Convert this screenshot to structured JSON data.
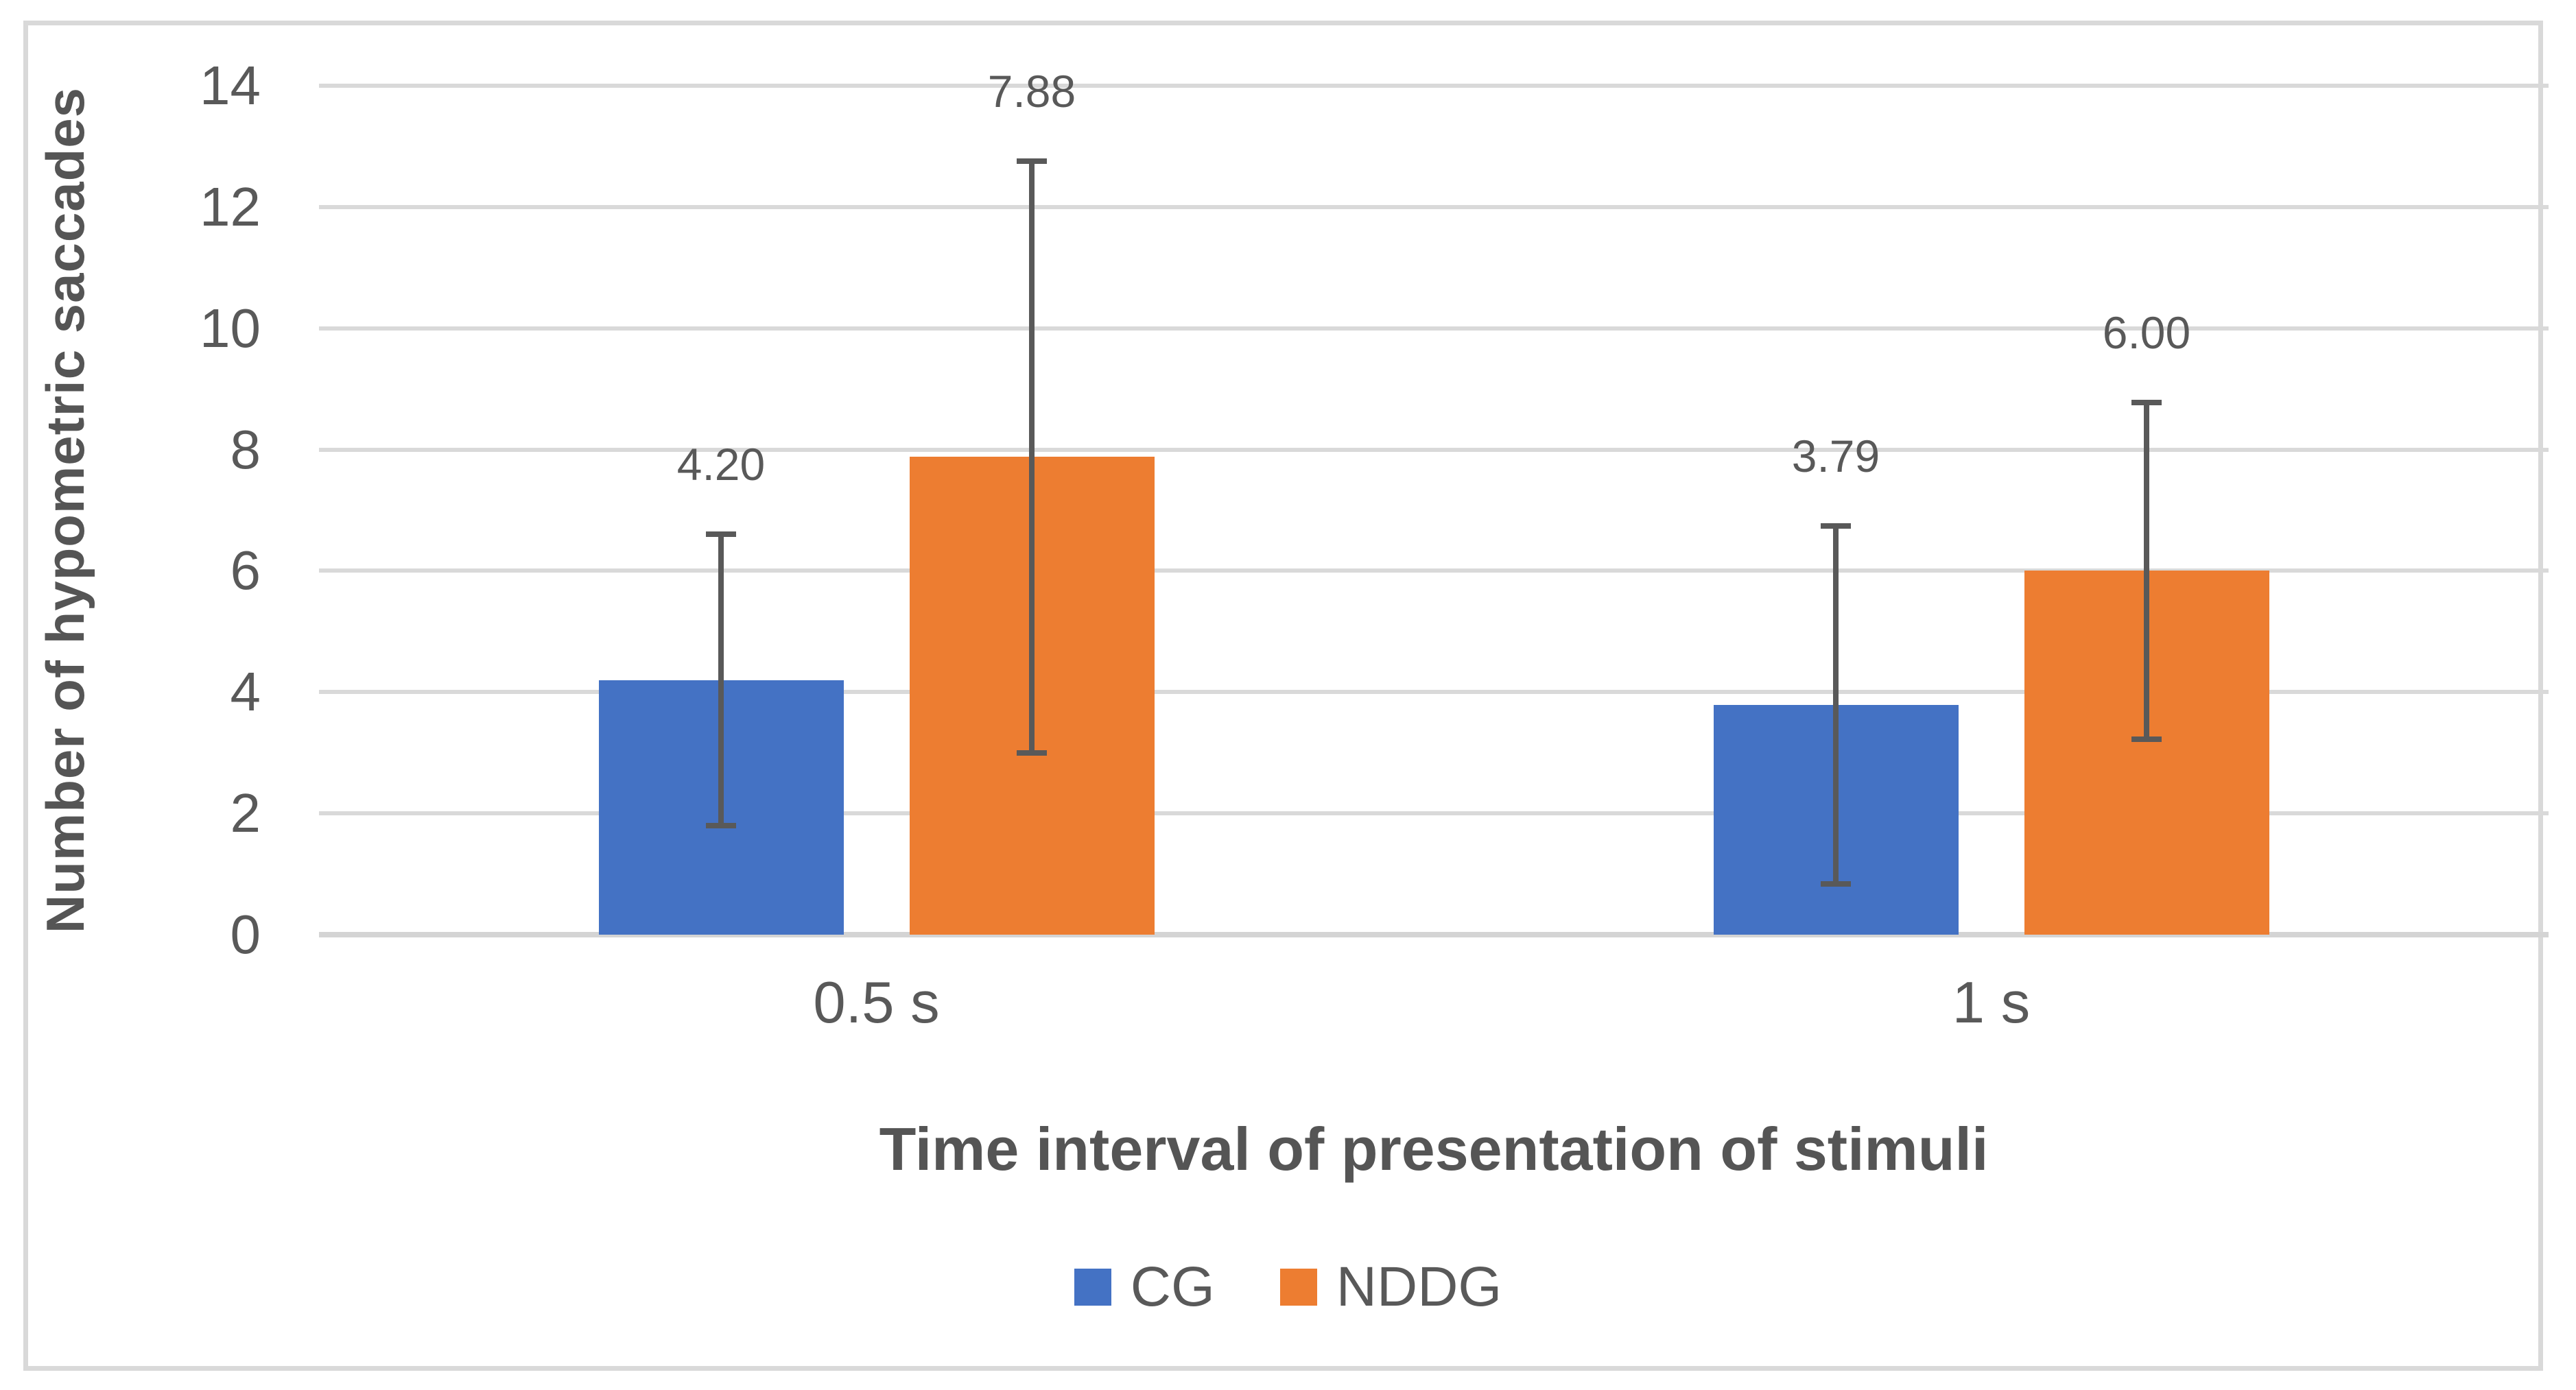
{
  "chart_data": {
    "type": "bar",
    "categories": [
      "0.5 s",
      "1 s"
    ],
    "series": [
      {
        "name": "CG",
        "color": "#4472C4",
        "values": [
          4.2,
          3.79
        ],
        "labels": [
          "4.20",
          "3.79"
        ],
        "error_low": [
          1.8,
          0.84
        ],
        "error_high": [
          6.6,
          6.74
        ]
      },
      {
        "name": "NDDG",
        "color": "#ED7D31",
        "values": [
          7.88,
          6.0
        ],
        "labels": [
          "7.88",
          "6.00"
        ],
        "error_low": [
          3.0,
          3.22
        ],
        "error_high": [
          12.76,
          8.78
        ]
      }
    ],
    "xlabel": "Time interval of presentation of stimuli",
    "ylabel": "Number of hypometric saccades",
    "ylim": [
      0,
      14
    ],
    "ytick_step": 2,
    "yticks": [
      "0",
      "2",
      "4",
      "6",
      "8",
      "10",
      "12",
      "14"
    ],
    "grid": true,
    "legend_position": "bottom",
    "colors": {
      "grid": "#D9D9D9",
      "axis_line": "#D4D4D4",
      "error_bar": "#595959",
      "frame": "#D9D9D9"
    }
  }
}
